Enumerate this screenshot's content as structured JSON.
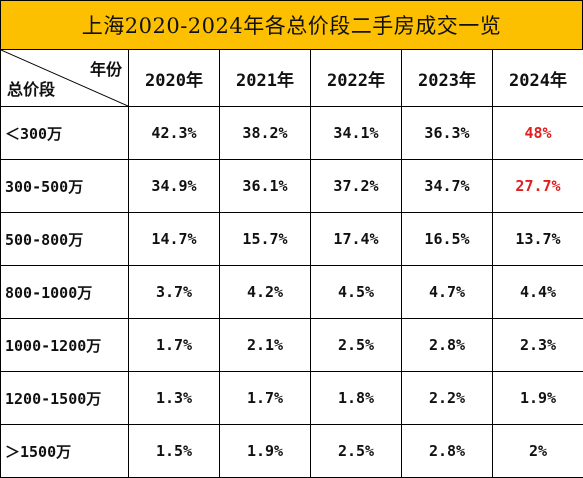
{
  "title": "上海2020-2024年各总价段二手房成交一览",
  "header": {
    "corner_top": "年份",
    "corner_bottom": "总价段",
    "years": [
      "2020年",
      "2021年",
      "2022年",
      "2023年",
      "2024年"
    ]
  },
  "rows": [
    {
      "label": "＜300万",
      "values": [
        "42.3%",
        "38.2%",
        "34.1%",
        "36.3%",
        "48%"
      ],
      "highlight": [
        false,
        false,
        false,
        false,
        true
      ]
    },
    {
      "label": "300-500万",
      "values": [
        "34.9%",
        "36.1%",
        "37.2%",
        "34.7%",
        "27.7%"
      ],
      "highlight": [
        false,
        false,
        false,
        false,
        true
      ]
    },
    {
      "label": "500-800万",
      "values": [
        "14.7%",
        "15.7%",
        "17.4%",
        "16.5%",
        "13.7%"
      ],
      "highlight": [
        false,
        false,
        false,
        false,
        false
      ]
    },
    {
      "label": "800-1000万",
      "values": [
        "3.7%",
        "4.2%",
        "4.5%",
        "4.7%",
        "4.4%"
      ],
      "highlight": [
        false,
        false,
        false,
        false,
        false
      ]
    },
    {
      "label": "1000-1200万",
      "values": [
        "1.7%",
        "2.1%",
        "2.5%",
        "2.8%",
        "2.3%"
      ],
      "highlight": [
        false,
        false,
        false,
        false,
        false
      ]
    },
    {
      "label": "1200-1500万",
      "values": [
        "1.3%",
        "1.7%",
        "1.8%",
        "2.2%",
        "1.9%"
      ],
      "highlight": [
        false,
        false,
        false,
        false,
        false
      ]
    },
    {
      "label": "＞1500万",
      "values": [
        "1.5%",
        "1.9%",
        "2.5%",
        "2.8%",
        "2%"
      ],
      "highlight": [
        false,
        false,
        false,
        false,
        false
      ]
    }
  ],
  "colors": {
    "title_bg": "#fcc000",
    "highlight": "#e02020"
  }
}
